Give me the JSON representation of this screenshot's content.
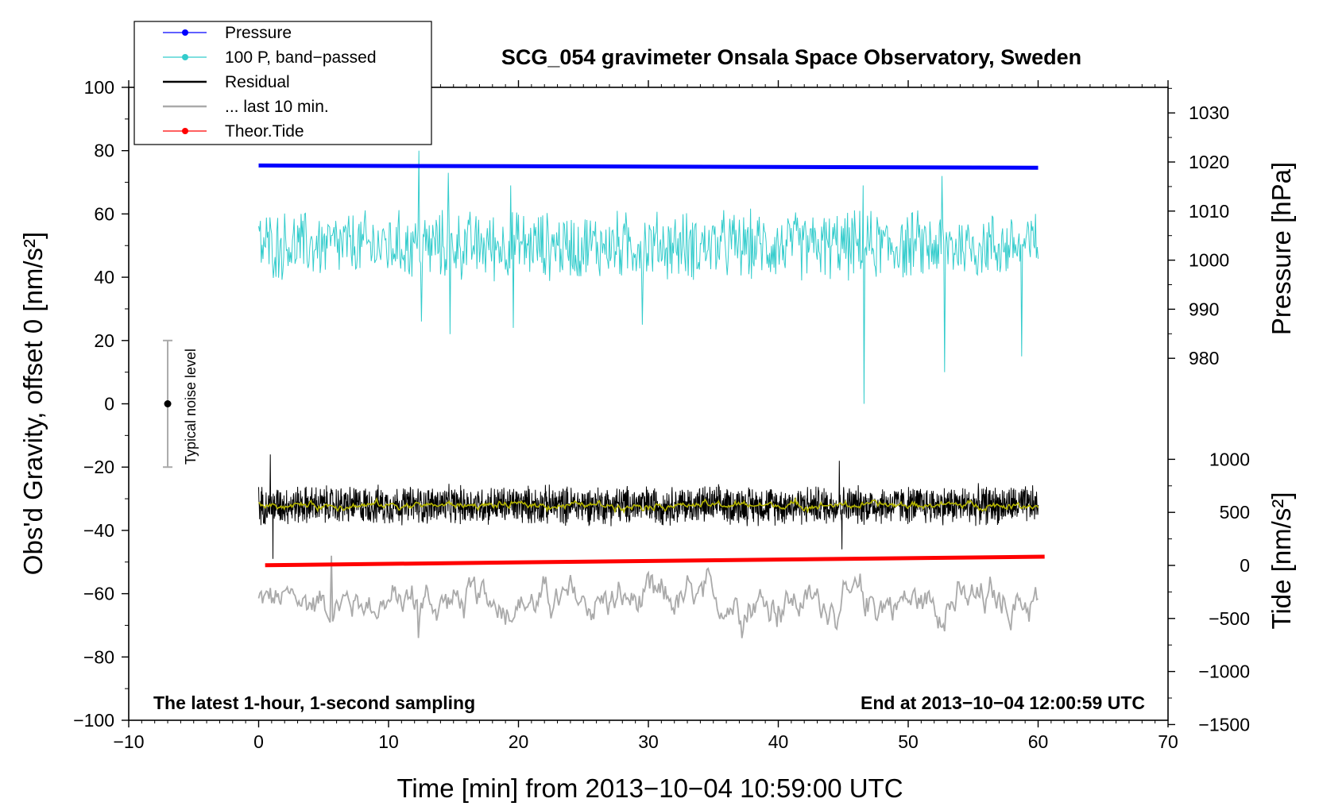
{
  "chart_data": {
    "type": "line",
    "title": "SCG_054 gravimeter Onsala Space Observatory, Sweden",
    "xlabel": "Time [min] from 2013−10−04 10:59:00 UTC",
    "ylabel_left": "Obs'd Gravity, offset 0 [nm/s²]",
    "ylabel_right_pressure": "Pressure [hPa]",
    "ylabel_right_tide": "Tide [nm/s²]",
    "xlim": [
      -10,
      70
    ],
    "ylim_left": [
      -100,
      100
    ],
    "xticks": [
      "−10",
      "0",
      "10",
      "20",
      "30",
      "40",
      "50",
      "60",
      "70"
    ],
    "yticks_left": [
      "100",
      "80",
      "60",
      "40",
      "20",
      "0",
      "−20",
      "−40",
      "−60",
      "−80",
      "−100"
    ],
    "yticks_pressure": [
      "1030",
      "1020",
      "1010",
      "1000",
      "990",
      "980"
    ],
    "yticks_tide": [
      "1000",
      "500",
      "0",
      "−500",
      "−1000",
      "−1500"
    ],
    "annotation_left": "The latest 1-hour, 1-second sampling",
    "annotation_right": "End at 2013−10−04 12:00:59 UTC",
    "noise_bar": {
      "label": "Typical noise level",
      "x": -7,
      "center": 0,
      "half_range": 20
    },
    "legend": [
      {
        "label": "Pressure",
        "color": "#0000ff",
        "marker": true
      },
      {
        "label": "100 P, band−passed",
        "color": "#33cccc",
        "marker": true
      },
      {
        "label": "Residual",
        "color": "#000000",
        "marker": false
      },
      {
        "label": "... last 10 min.",
        "color": "#aaaaaa",
        "marker": false
      },
      {
        "label": "Theor.Tide",
        "color": "#ff0000",
        "marker": true
      }
    ],
    "series": [
      {
        "name": "Pressure",
        "color": "#0000ff",
        "axis": "left",
        "x": [
          0,
          60
        ],
        "values": [
          75.3,
          74.6
        ]
      },
      {
        "name": "100 P, band-passed",
        "color": "#33cccc",
        "axis": "left",
        "x_range": [
          0,
          60
        ],
        "center": 50,
        "noise_amp": 9,
        "spikes": [
          [
            12.3,
            80
          ],
          [
            12.5,
            26
          ],
          [
            14.6,
            73
          ],
          [
            14.7,
            22
          ],
          [
            19.4,
            69
          ],
          [
            19.6,
            24
          ],
          [
            29.5,
            25
          ],
          [
            46.5,
            69
          ],
          [
            46.6,
            0
          ],
          [
            52.6,
            72
          ],
          [
            52.8,
            10
          ],
          [
            58.7,
            15
          ],
          [
            59.8,
            60
          ]
        ]
      },
      {
        "name": "Residual",
        "color": "#000000",
        "axis": "left",
        "x_range": [
          0,
          60
        ],
        "center": -32,
        "noise_amp": 5,
        "spikes": [
          [
            0.9,
            -16
          ],
          [
            1.1,
            -49
          ],
          [
            44.7,
            -18
          ],
          [
            44.9,
            -46
          ]
        ]
      },
      {
        "name": "Residual smoothed",
        "color": "#b5b500",
        "axis": "left",
        "x_range": [
          0,
          60
        ],
        "center": -32,
        "noise_amp": 1.3
      },
      {
        "name": "... last 10 min.",
        "color": "#aaaaaa",
        "axis": "left",
        "x_range": [
          0,
          60
        ],
        "center": -62.5,
        "noise_amp": 7,
        "spikes": [
          [
            5.6,
            -48
          ],
          [
            12.3,
            -74
          ]
        ]
      },
      {
        "name": "Theor.Tide",
        "color": "#ff0000",
        "axis": "left",
        "x": [
          0.5,
          60.5
        ],
        "values": [
          -51,
          -48.3
        ]
      }
    ]
  }
}
